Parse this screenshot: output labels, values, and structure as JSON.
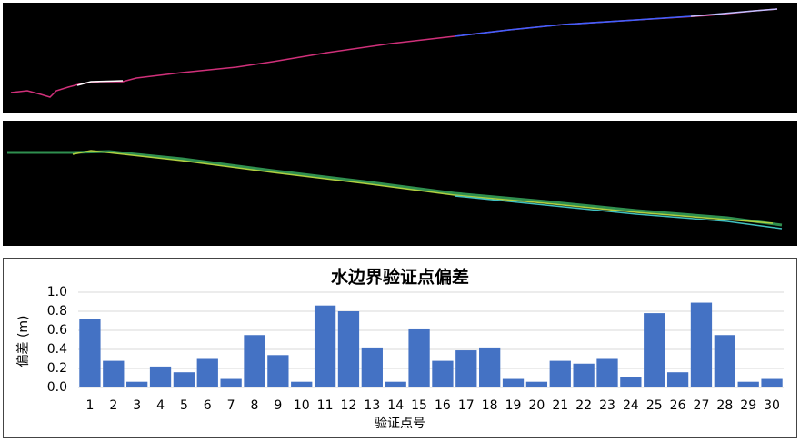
{
  "chart_data": {
    "type": "bar",
    "title": "水边界验证点偏差",
    "x_label": "验证点号",
    "y_label": "偏差 (m)",
    "categories": [
      "1",
      "2",
      "3",
      "4",
      "5",
      "6",
      "7",
      "8",
      "9",
      "10",
      "11",
      "12",
      "13",
      "14",
      "15",
      "16",
      "17",
      "18",
      "19",
      "20",
      "21",
      "22",
      "23",
      "24",
      "25",
      "26",
      "27",
      "28",
      "29",
      "30"
    ],
    "values": [
      0.72,
      0.28,
      0.06,
      0.22,
      0.16,
      0.3,
      0.09,
      0.55,
      0.34,
      0.06,
      0.86,
      0.8,
      0.42,
      0.06,
      0.61,
      0.28,
      0.39,
      0.42,
      0.09,
      0.06,
      0.28,
      0.25,
      0.3,
      0.11,
      0.78,
      0.16,
      0.89,
      0.55,
      0.06,
      0.09
    ],
    "color": "#4472c4",
    "ylim": [
      0,
      1
    ],
    "yticks": [
      {
        "value": 0,
        "label": "0.0"
      },
      0.2,
      0.4,
      0.6,
      0.8,
      {
        "value": 1,
        "label": "1.0"
      }
    ],
    "grid": true
  }
}
